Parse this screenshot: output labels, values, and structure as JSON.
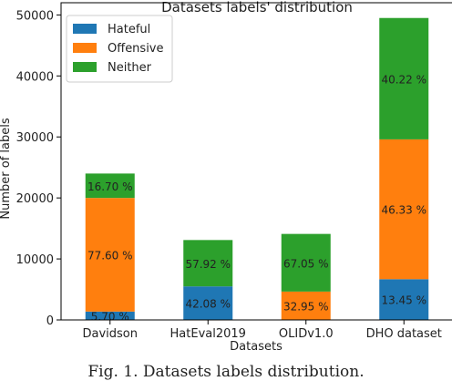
{
  "figure": {
    "caption": "Fig. 1.  Datasets labels distribution."
  },
  "chart_data": {
    "type": "bar",
    "stacked": true,
    "title": "Datasets labels' distribution",
    "xlabel": "Datasets",
    "ylabel": "Number of labels",
    "ylim": [
      0,
      52000
    ],
    "yticks": [
      0,
      10000,
      20000,
      30000,
      40000,
      50000
    ],
    "grid": false,
    "legend_position": "top-left",
    "categories": [
      "Davidson",
      "HatEval2019",
      "OLIDv1.0",
      "DHO dataset"
    ],
    "series": [
      {
        "name": "Hateful",
        "color": "#1f77b4",
        "values": [
          1370,
          5500,
          0,
          6680
        ],
        "labels": [
          "5.70 %",
          "42.08 %",
          "",
          "13.45 %"
        ]
      },
      {
        "name": "Offensive",
        "color": "#ff7f0e",
        "values": [
          18630,
          0,
          4650,
          22920
        ],
        "labels": [
          "77.60 %",
          "",
          "32.95 %",
          "46.33 %"
        ]
      },
      {
        "name": "Neither",
        "color": "#2ca02c",
        "values": [
          4000,
          7600,
          9450,
          19900
        ],
        "labels": [
          "16.70 %",
          "57.92 %",
          "67.05 %",
          "40.22 %"
        ]
      }
    ]
  }
}
